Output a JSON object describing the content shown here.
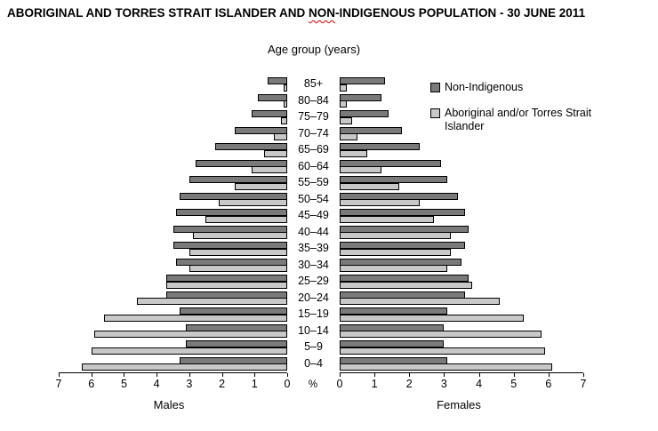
{
  "title": {
    "pre": "ABORIGINAL AND TORRES STRAIT ISLANDER AND ",
    "misspelled": "NON",
    "post": "-INDIGENOUS POPULATION - 30 JUNE 2011"
  },
  "chart_data": {
    "type": "bar",
    "subtype": "population-pyramid",
    "title": "ABORIGINAL AND TORRES STRAIT ISLANDER AND NON-INDIGENOUS POPULATION - 30 JUNE 2011",
    "center_axis_label": "Age group (years)",
    "unit_label": "%",
    "left_label": "Males",
    "right_label": "Females",
    "axis_range": [
      0,
      7
    ],
    "axis_ticks": [
      0,
      1,
      2,
      3,
      4,
      5,
      6,
      7
    ],
    "grid": false,
    "legend_position": "top-right",
    "age_groups": [
      "85+",
      "80–84",
      "75–79",
      "70–74",
      "65–69",
      "60–64",
      "55–59",
      "50–54",
      "45–49",
      "40–44",
      "35–39",
      "30–34",
      "25–29",
      "20–24",
      "15–19",
      "10–14",
      "5–9",
      "0–4"
    ],
    "series": [
      {
        "name": "Non-Indigenous",
        "color": "#7a7a7a",
        "males": [
          0.6,
          0.9,
          1.1,
          1.6,
          2.2,
          2.8,
          3.0,
          3.3,
          3.4,
          3.5,
          3.5,
          3.4,
          3.7,
          3.7,
          3.3,
          3.1,
          3.1,
          3.3
        ],
        "females": [
          1.3,
          1.2,
          1.4,
          1.8,
          2.3,
          2.9,
          3.1,
          3.4,
          3.6,
          3.7,
          3.6,
          3.5,
          3.7,
          3.6,
          3.1,
          3.0,
          3.0,
          3.1
        ]
      },
      {
        "name": "Aboriginal and/or Torres Strait Islander",
        "color": "#c8c8c8",
        "males": [
          0.1,
          0.1,
          0.2,
          0.4,
          0.7,
          1.1,
          1.6,
          2.1,
          2.5,
          2.9,
          3.0,
          3.0,
          3.7,
          4.6,
          5.6,
          5.9,
          6.0,
          6.3
        ],
        "females": [
          0.2,
          0.2,
          0.35,
          0.5,
          0.8,
          1.2,
          1.7,
          2.3,
          2.7,
          3.2,
          3.2,
          3.1,
          3.8,
          4.6,
          5.3,
          5.8,
          5.9,
          6.1
        ]
      }
    ]
  }
}
